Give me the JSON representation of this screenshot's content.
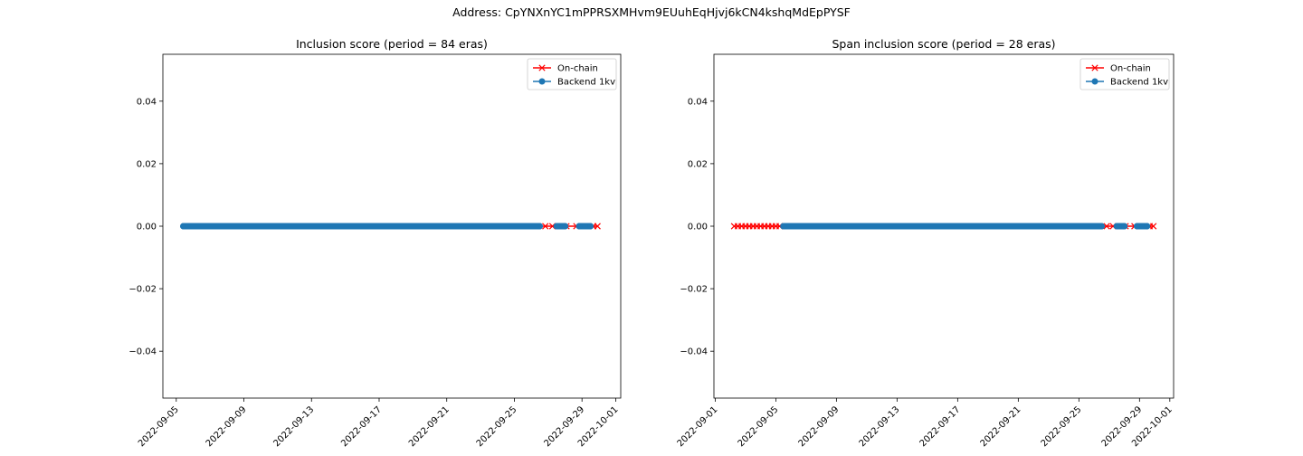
{
  "suptitle": "Address: CpYNXnYC1mPPRSXMHvm9EUuhEqHjvj6kCN4kshqMdEpPYSF",
  "colors": {
    "on_chain": "#ff0000",
    "backend": "#1f77b4"
  },
  "chart_data": [
    {
      "type": "line",
      "title": "Inclusion score (period = 84 eras)",
      "xlabel": "",
      "ylabel": "",
      "xlim": [
        "2022-09-04T05:00",
        "2022-10-01T07:00"
      ],
      "ylim": [
        -0.055,
        0.055
      ],
      "yticks": [
        -0.04,
        -0.02,
        0.0,
        0.02,
        0.04
      ],
      "ytick_labels": [
        "−0.04",
        "−0.02",
        "0.00",
        "0.02",
        "0.04"
      ],
      "xticks": [
        "2022-09-05",
        "2022-09-09",
        "2022-09-13",
        "2022-09-17",
        "2022-09-21",
        "2022-09-25",
        "2022-09-29",
        "2022-10-01"
      ],
      "legend": {
        "position": "top-right",
        "entries": [
          "On-chain",
          "Backend 1kv"
        ]
      },
      "series": [
        {
          "name": "On-chain",
          "marker": "x",
          "x_segments": [
            [
              "2022-09-05T10:00",
              "2022-09-29T22:00"
            ]
          ],
          "extra_x": [
            "2022-09-26T20:00",
            "2022-09-27T06:00",
            "2022-09-28T02:00",
            "2022-09-28T16:00",
            "2022-09-29T16:00",
            "2022-09-29T22:00"
          ],
          "y": 0
        },
        {
          "name": "Backend 1kv",
          "marker": "o",
          "x_segments": [
            [
              "2022-09-05T10:00",
              "2022-09-26T12:00"
            ],
            [
              "2022-09-27T12:00",
              "2022-09-28T00:00"
            ],
            [
              "2022-09-28T20:00",
              "2022-09-29T12:00"
            ]
          ],
          "y": 0
        }
      ]
    },
    {
      "type": "line",
      "title": "Span inclusion score (period = 28 eras)",
      "xlabel": "",
      "ylabel": "",
      "xlim": [
        "2022-08-31T22:00",
        "2022-10-01T06:00"
      ],
      "ylim": [
        -0.055,
        0.055
      ],
      "yticks": [
        -0.04,
        -0.02,
        0.0,
        0.02,
        0.04
      ],
      "ytick_labels": [
        "−0.04",
        "−0.02",
        "0.00",
        "0.02",
        "0.04"
      ],
      "xticks": [
        "2022-09-01",
        "2022-09-05",
        "2022-09-09",
        "2022-09-13",
        "2022-09-17",
        "2022-09-21",
        "2022-09-25",
        "2022-09-29",
        "2022-10-01"
      ],
      "legend": {
        "position": "top-right",
        "entries": [
          "On-chain",
          "Backend 1kv"
        ]
      },
      "series": [
        {
          "name": "On-chain",
          "marker": "x",
          "x_segments": [
            [
              "2022-09-02T06:00",
              "2022-09-29T22:00"
            ]
          ],
          "extra_x": [
            "2022-09-02T06:00",
            "2022-09-02T12:00",
            "2022-09-02T18:00",
            "2022-09-03T00:00",
            "2022-09-03T06:00",
            "2022-09-03T12:00",
            "2022-09-03T18:00",
            "2022-09-04T00:00",
            "2022-09-04T06:00",
            "2022-09-04T12:00",
            "2022-09-04T18:00",
            "2022-09-05T00:00",
            "2022-09-05T06:00",
            "2022-09-26T20:00",
            "2022-09-27T06:00",
            "2022-09-28T02:00",
            "2022-09-28T16:00",
            "2022-09-29T16:00",
            "2022-09-29T22:00"
          ],
          "y": 0
        },
        {
          "name": "Backend 1kv",
          "marker": "o",
          "x_segments": [
            [
              "2022-09-05T12:00",
              "2022-09-26T12:00"
            ],
            [
              "2022-09-27T12:00",
              "2022-09-28T00:00"
            ],
            [
              "2022-09-28T20:00",
              "2022-09-29T12:00"
            ]
          ],
          "y": 0
        }
      ]
    }
  ]
}
